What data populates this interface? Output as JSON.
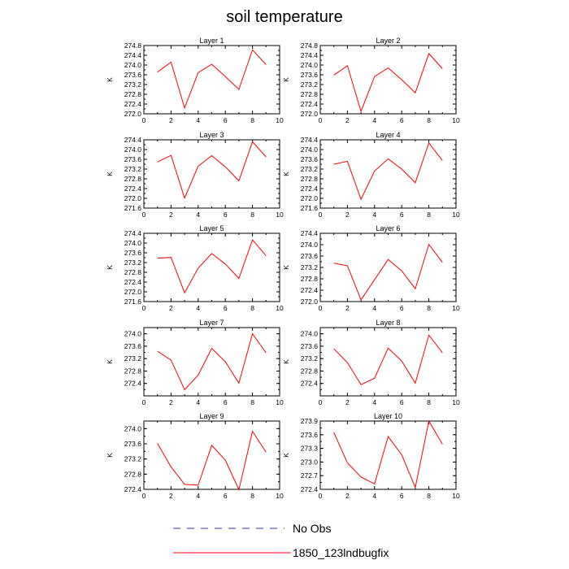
{
  "figure": {
    "title": "soil temperature"
  },
  "chart_data": [
    {
      "type": "line",
      "title": "Layer 1",
      "ylabel": "K",
      "xlim": [
        0,
        10
      ],
      "ylim": [
        272.0,
        274.8
      ],
      "xticks": [
        0,
        2,
        4,
        6,
        8,
        10
      ],
      "yticks": [
        "272.0",
        "272.4",
        "272.8",
        "273.2",
        "273.6",
        "274.0",
        "274.4",
        "274.8"
      ],
      "x": [
        1,
        2,
        3,
        4,
        5,
        6,
        7,
        8,
        9
      ],
      "series": [
        {
          "name": "1850_123lndbugfix",
          "color": "#ff0000",
          "values": [
            273.71,
            274.12,
            272.24,
            273.69,
            274.03,
            273.53,
            273.0,
            274.62,
            274.02
          ]
        }
      ]
    },
    {
      "type": "line",
      "title": "Layer 2",
      "ylabel": "K",
      "xlim": [
        0,
        10
      ],
      "ylim": [
        272.0,
        274.8
      ],
      "xticks": [
        0,
        2,
        4,
        6,
        8,
        10
      ],
      "yticks": [
        "272.0",
        "272.4",
        "272.8",
        "273.2",
        "273.6",
        "274.0",
        "274.4",
        "274.8"
      ],
      "x": [
        1,
        2,
        3,
        4,
        5,
        6,
        7,
        8,
        9
      ],
      "series": [
        {
          "name": "1850_123lndbugfix",
          "color": "#ff0000",
          "values": [
            273.59,
            273.97,
            272.1,
            273.53,
            273.88,
            273.4,
            272.86,
            274.47,
            273.85
          ]
        }
      ]
    },
    {
      "type": "line",
      "title": "Layer 3",
      "ylabel": "K",
      "xlim": [
        0,
        10
      ],
      "ylim": [
        271.6,
        274.4
      ],
      "xticks": [
        0,
        2,
        4,
        6,
        8,
        10
      ],
      "yticks": [
        "271.6",
        "272.0",
        "272.4",
        "272.8",
        "273.2",
        "273.6",
        "274.0",
        "274.4"
      ],
      "x": [
        1,
        2,
        3,
        4,
        5,
        6,
        7,
        8,
        9
      ],
      "series": [
        {
          "name": "1850_123lndbugfix",
          "color": "#ff0000",
          "values": [
            273.49,
            273.76,
            272.01,
            273.32,
            273.75,
            273.29,
            272.72,
            274.32,
            273.7
          ]
        }
      ]
    },
    {
      "type": "line",
      "title": "Layer 4",
      "ylabel": "K",
      "xlim": [
        0,
        10
      ],
      "ylim": [
        271.6,
        274.4
      ],
      "xticks": [
        0,
        2,
        4,
        6,
        8,
        10
      ],
      "yticks": [
        "271.6",
        "272.0",
        "272.4",
        "272.8",
        "273.2",
        "273.6",
        "274.0",
        "274.4"
      ],
      "x": [
        1,
        2,
        3,
        4,
        5,
        6,
        7,
        8,
        9
      ],
      "series": [
        {
          "name": "1850_123lndbugfix",
          "color": "#ff0000",
          "values": [
            273.4,
            273.52,
            271.96,
            273.12,
            273.62,
            273.2,
            272.64,
            274.27,
            273.55
          ]
        }
      ]
    },
    {
      "type": "line",
      "title": "Layer 5",
      "ylabel": "K",
      "xlim": [
        0,
        10
      ],
      "ylim": [
        271.6,
        274.4
      ],
      "xticks": [
        0,
        2,
        4,
        6,
        8,
        10
      ],
      "yticks": [
        "271.6",
        "272.0",
        "272.4",
        "272.8",
        "273.2",
        "273.6",
        "274.0",
        "274.4"
      ],
      "x": [
        1,
        2,
        3,
        4,
        5,
        6,
        7,
        8,
        9
      ],
      "series": [
        {
          "name": "1850_123lndbugfix",
          "color": "#ff0000",
          "values": [
            273.38,
            273.41,
            271.96,
            272.97,
            273.57,
            273.14,
            272.55,
            274.13,
            273.48
          ]
        }
      ]
    },
    {
      "type": "line",
      "title": "Layer 6",
      "ylabel": "K",
      "xlim": [
        0,
        10
      ],
      "ylim": [
        272.0,
        274.4
      ],
      "xticks": [
        0,
        2,
        4,
        6,
        8,
        10
      ],
      "yticks": [
        "272.0",
        "272.4",
        "272.8",
        "273.2",
        "273.6",
        "274.0",
        "274.4"
      ],
      "x": [
        1,
        2,
        3,
        4,
        5,
        6,
        7,
        8,
        9
      ],
      "series": [
        {
          "name": "1850_123lndbugfix",
          "color": "#ff0000",
          "values": [
            273.35,
            273.26,
            272.06,
            272.77,
            273.48,
            273.08,
            272.45,
            274.01,
            273.38
          ]
        }
      ]
    },
    {
      "type": "line",
      "title": "Layer 7",
      "ylabel": "K",
      "xlim": [
        0,
        10
      ],
      "ylim": [
        272.0,
        274.2
      ],
      "xticks": [
        0,
        2,
        4,
        6,
        8,
        10
      ],
      "yticks": [
        "272.4",
        "272.8",
        "273.2",
        "273.6",
        "274.0"
      ],
      "x": [
        1,
        2,
        3,
        4,
        5,
        6,
        7,
        8,
        9
      ],
      "series": [
        {
          "name": "1850_123lndbugfix",
          "color": "#ff0000",
          "values": [
            273.44,
            273.15,
            272.2,
            272.67,
            273.53,
            273.1,
            272.41,
            274.0,
            273.39
          ]
        }
      ]
    },
    {
      "type": "line",
      "title": "Layer 8",
      "ylabel": "K",
      "xlim": [
        0,
        10
      ],
      "ylim": [
        272.0,
        274.2
      ],
      "xticks": [
        0,
        2,
        4,
        6,
        8,
        10
      ],
      "yticks": [
        "272.4",
        "272.8",
        "273.2",
        "273.6",
        "274.0"
      ],
      "x": [
        1,
        2,
        3,
        4,
        5,
        6,
        7,
        8,
        9
      ],
      "series": [
        {
          "name": "1850_123lndbugfix",
          "color": "#ff0000",
          "values": [
            273.52,
            273.07,
            272.36,
            272.57,
            273.54,
            273.12,
            272.41,
            273.96,
            273.39
          ]
        }
      ]
    },
    {
      "type": "line",
      "title": "Layer 9",
      "ylabel": "K",
      "xlim": [
        0,
        10
      ],
      "ylim": [
        272.4,
        274.2
      ],
      "xticks": [
        0,
        2,
        4,
        6,
        8,
        10
      ],
      "yticks": [
        "272.4",
        "272.8",
        "273.2",
        "273.6",
        "274.0"
      ],
      "x": [
        1,
        2,
        3,
        4,
        5,
        6,
        7,
        8,
        9
      ],
      "series": [
        {
          "name": "1850_123lndbugfix",
          "color": "#ff0000",
          "values": [
            273.61,
            272.99,
            272.53,
            272.51,
            273.56,
            273.17,
            272.39,
            273.93,
            273.38
          ]
        }
      ]
    },
    {
      "type": "line",
      "title": "Layer 10",
      "ylabel": "K",
      "xlim": [
        0,
        10
      ],
      "ylim": [
        272.4,
        273.9
      ],
      "xticks": [
        0,
        2,
        4,
        6,
        8,
        10
      ],
      "yticks": [
        "272.4",
        "272.7",
        "273.0",
        "273.3",
        "273.6",
        "273.9"
      ],
      "x": [
        1,
        2,
        3,
        4,
        5,
        6,
        7,
        8,
        9
      ],
      "series": [
        {
          "name": "1850_123lndbugfix",
          "color": "#ff0000",
          "values": [
            273.65,
            272.98,
            272.67,
            272.52,
            273.56,
            273.16,
            272.44,
            273.9,
            273.39
          ]
        }
      ]
    }
  ],
  "legend": {
    "placement": "bottom-center",
    "items": [
      {
        "label": "No Obs",
        "color": "#3333aa",
        "style": "dashed"
      },
      {
        "label": "1850_123lndbugfix",
        "color": "#ff0000",
        "style": "solid"
      }
    ]
  }
}
